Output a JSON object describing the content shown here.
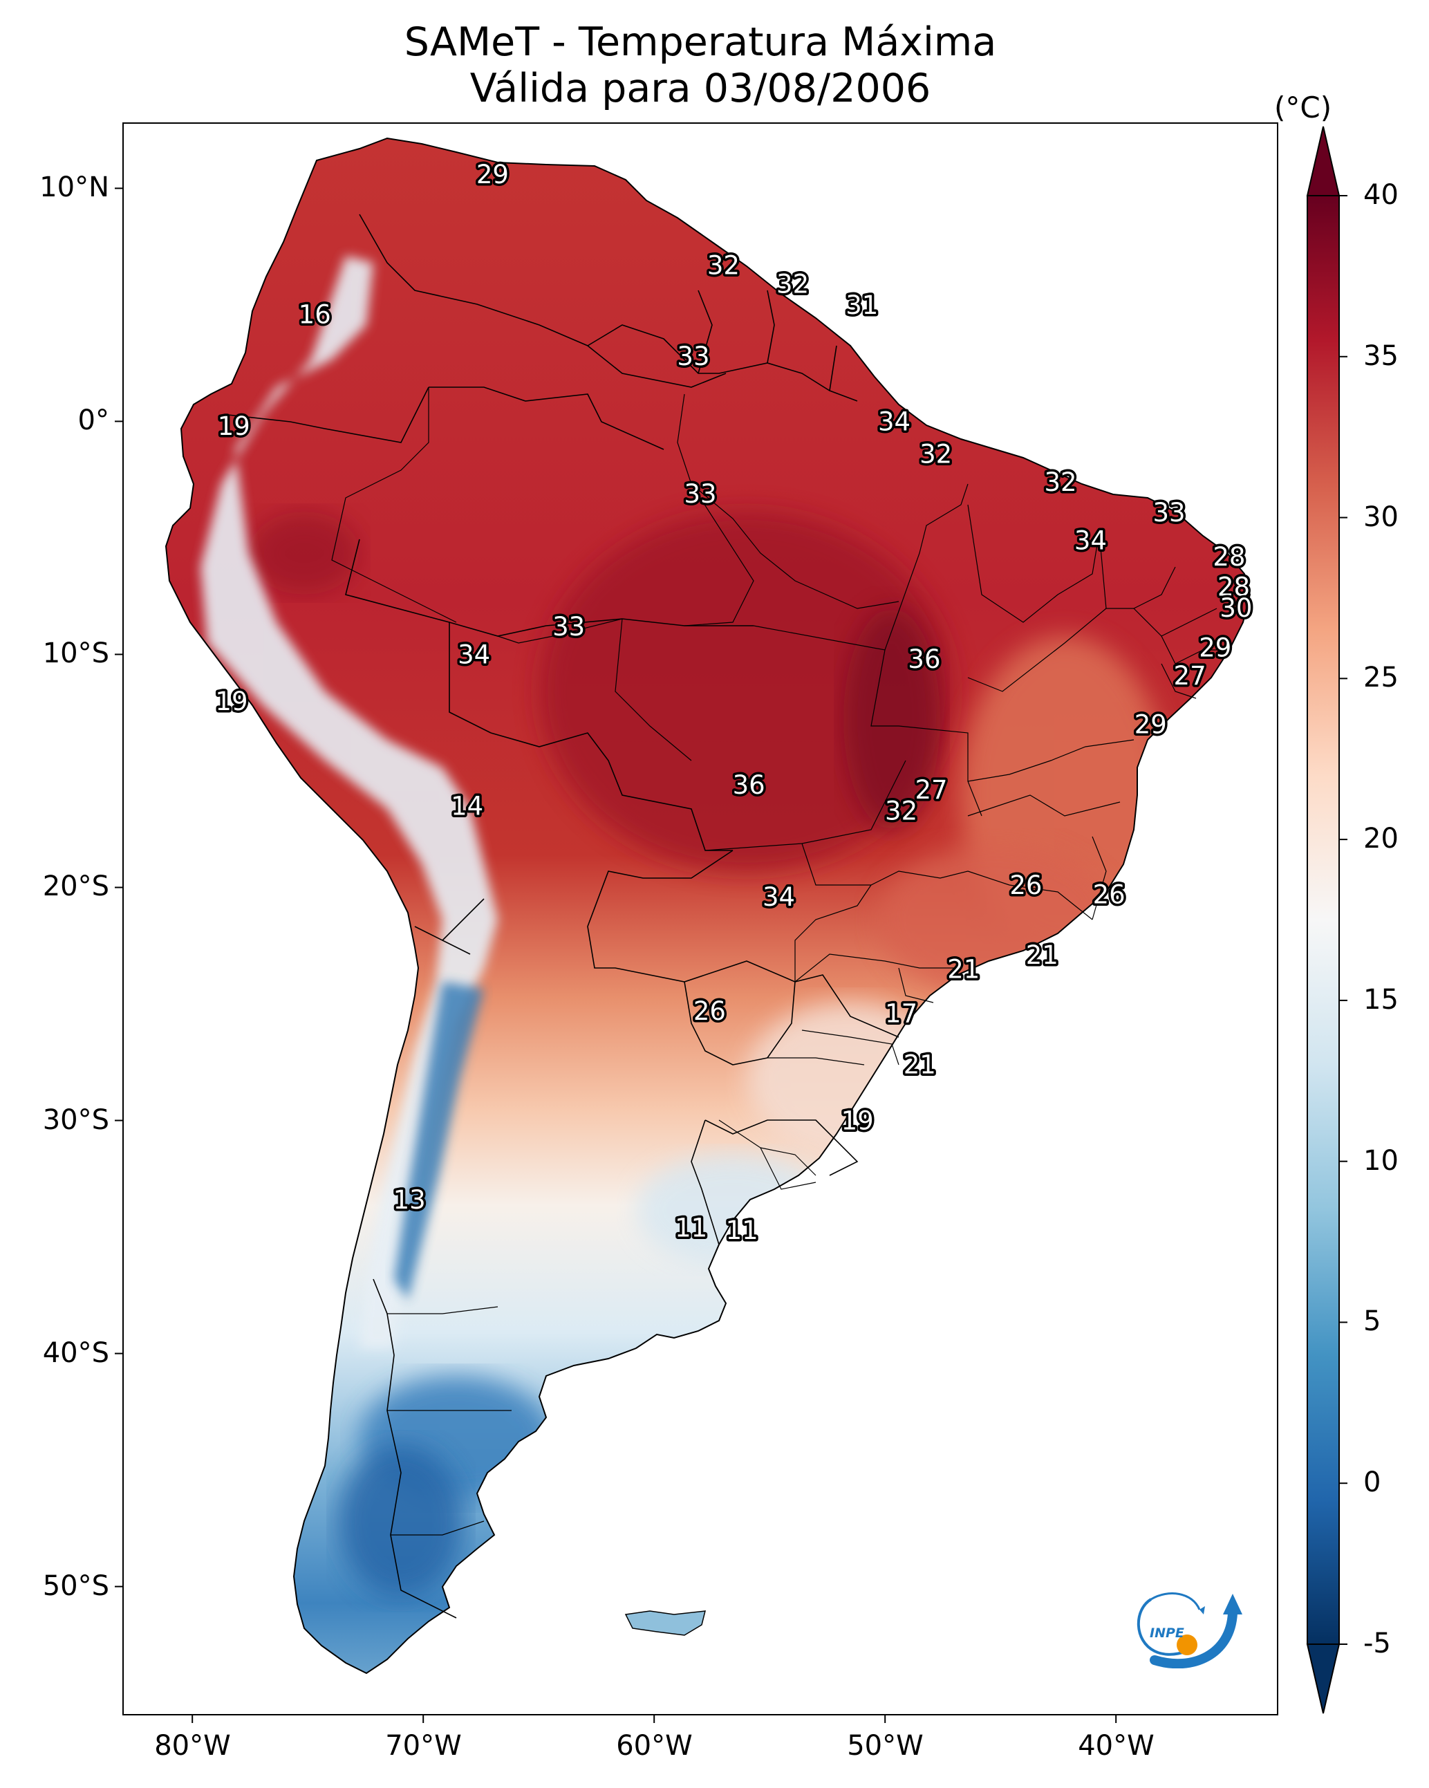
{
  "title": {
    "line1": "SAMeT - Temperatura Máxima",
    "line2": "Válida para 03/08/2006"
  },
  "colorbar": {
    "unit": "(°C)",
    "ticks": [
      "40",
      "35",
      "30",
      "25",
      "20",
      "15",
      "10",
      "5",
      "0",
      "-5"
    ],
    "tick_values": [
      40,
      35,
      30,
      25,
      20,
      15,
      10,
      5,
      0,
      -5
    ],
    "range": [
      -5,
      40
    ],
    "colormap": "RdBu_r",
    "colors": [
      "#053061",
      "#2166ac",
      "#4393c3",
      "#92c5de",
      "#d1e5f0",
      "#f7f7f7",
      "#fddbc7",
      "#f4a582",
      "#d6604d",
      "#b2182b",
      "#67001f"
    ]
  },
  "axes": {
    "lat_labels": [
      "10°N",
      "0°",
      "10°S",
      "20°S",
      "30°S",
      "40°S",
      "50°S"
    ],
    "lat_values": [
      10,
      0,
      -10,
      -20,
      -30,
      -40,
      -50
    ],
    "lon_labels": [
      "80°W",
      "70°W",
      "60°W",
      "50°W",
      "40°W"
    ],
    "lon_values": [
      -80,
      -70,
      -60,
      -50,
      -40
    ],
    "lat_range": [
      -55.5,
      12.8
    ],
    "lon_range": [
      -83.0,
      -33.0
    ]
  },
  "stations": [
    {
      "lon": -67.0,
      "lat": 10.6,
      "value": "29"
    },
    {
      "lon": -57.0,
      "lat": 6.7,
      "value": "32"
    },
    {
      "lon": -54.0,
      "lat": 5.9,
      "value": "32"
    },
    {
      "lon": -51.0,
      "lat": 5.0,
      "value": "31"
    },
    {
      "lon": -58.3,
      "lat": 2.8,
      "value": "33"
    },
    {
      "lon": -74.7,
      "lat": 4.6,
      "value": "16"
    },
    {
      "lon": -78.2,
      "lat": -0.2,
      "value": "19"
    },
    {
      "lon": -49.6,
      "lat": 0.0,
      "value": "34"
    },
    {
      "lon": -47.8,
      "lat": -1.4,
      "value": "32"
    },
    {
      "lon": -42.4,
      "lat": -2.6,
      "value": "32"
    },
    {
      "lon": -37.7,
      "lat": -3.9,
      "value": "33"
    },
    {
      "lon": -58.0,
      "lat": -3.1,
      "value": "33"
    },
    {
      "lon": -41.1,
      "lat": -5.1,
      "value": "34"
    },
    {
      "lon": -35.1,
      "lat": -5.8,
      "value": "28"
    },
    {
      "lon": -34.9,
      "lat": -7.1,
      "value": "28"
    },
    {
      "lon": -34.8,
      "lat": -8.0,
      "value": "30"
    },
    {
      "lon": -63.7,
      "lat": -8.8,
      "value": "33"
    },
    {
      "lon": -67.8,
      "lat": -10.0,
      "value": "34"
    },
    {
      "lon": -48.3,
      "lat": -10.2,
      "value": "36"
    },
    {
      "lon": -35.7,
      "lat": -9.7,
      "value": "29"
    },
    {
      "lon": -36.8,
      "lat": -10.9,
      "value": "27"
    },
    {
      "lon": -78.3,
      "lat": -12.0,
      "value": "19"
    },
    {
      "lon": -38.5,
      "lat": -13.0,
      "value": "29"
    },
    {
      "lon": -55.9,
      "lat": -15.6,
      "value": "36"
    },
    {
      "lon": -48.0,
      "lat": -15.8,
      "value": "27"
    },
    {
      "lon": -49.3,
      "lat": -16.7,
      "value": "32"
    },
    {
      "lon": -68.1,
      "lat": -16.5,
      "value": "14"
    },
    {
      "lon": -43.9,
      "lat": -19.9,
      "value": "26"
    },
    {
      "lon": -40.3,
      "lat": -20.3,
      "value": "26"
    },
    {
      "lon": -54.6,
      "lat": -20.4,
      "value": "34"
    },
    {
      "lon": -46.6,
      "lat": -23.5,
      "value": "21"
    },
    {
      "lon": -43.2,
      "lat": -22.9,
      "value": "21"
    },
    {
      "lon": -57.6,
      "lat": -25.3,
      "value": "26"
    },
    {
      "lon": -49.3,
      "lat": -25.4,
      "value": "17"
    },
    {
      "lon": -48.5,
      "lat": -27.6,
      "value": "21"
    },
    {
      "lon": -51.2,
      "lat": -30.0,
      "value": "19"
    },
    {
      "lon": -70.6,
      "lat": -33.4,
      "value": "13"
    },
    {
      "lon": -58.4,
      "lat": -34.6,
      "value": "11"
    },
    {
      "lon": -56.2,
      "lat": -34.7,
      "value": "11"
    }
  ],
  "logo": {
    "text": "INPE",
    "colors": {
      "blue": "#1f79c2",
      "orange": "#f29400"
    }
  }
}
